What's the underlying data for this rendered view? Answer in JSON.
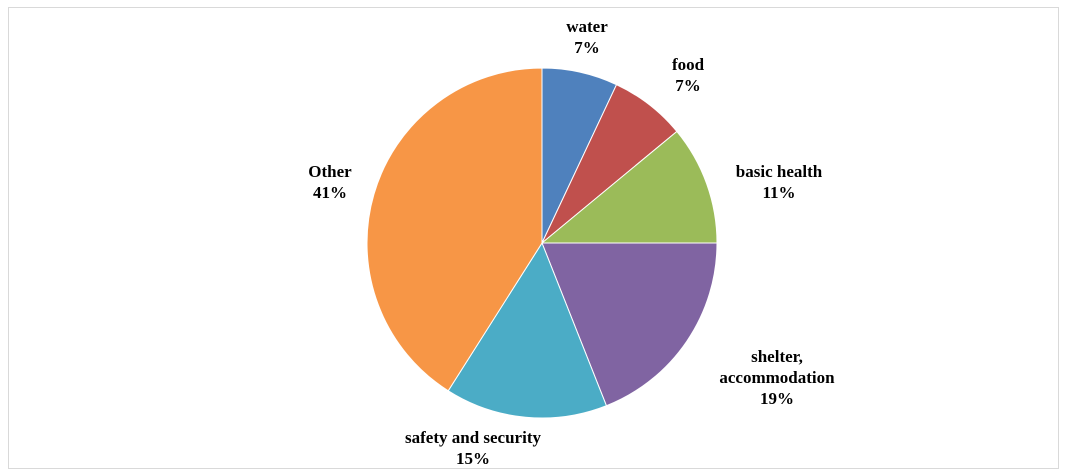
{
  "chart_data": {
    "type": "pie",
    "title": "",
    "slices": [
      {
        "label": "water",
        "value": 7,
        "display": "7%",
        "color": "#4F81BD"
      },
      {
        "label": "food",
        "value": 7,
        "display": "7%",
        "color": "#C0504D"
      },
      {
        "label": "basic health",
        "value": 11,
        "display": "11%",
        "color": "#9BBB59"
      },
      {
        "label": "shelter, accommodation",
        "value": 19,
        "display": "19%",
        "color": "#8064A2"
      },
      {
        "label": "safety and security",
        "value": 15,
        "display": "15%",
        "color": "#4BACC6"
      },
      {
        "label": "Other",
        "value": 41,
        "display": "41%",
        "color": "#F79646"
      }
    ],
    "start_angle": "12 o'clock",
    "direction": "clockwise",
    "legend": "none",
    "data_labels": "outside"
  }
}
